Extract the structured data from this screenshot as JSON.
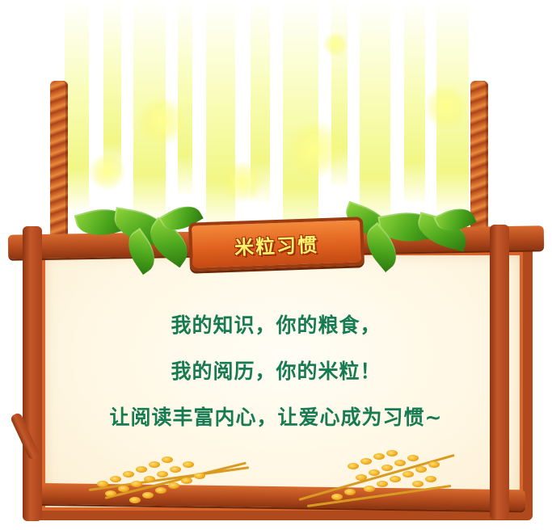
{
  "title": "米粒习惯",
  "lines": [
    "我的知识，你的粮食，",
    "我的阅历，你的米粒！",
    "让阅读丰富内心，让爱心成为习惯~"
  ],
  "colors": {
    "title_text": "#fff36a",
    "body_text": "#167b52",
    "wood": "#b04a1c"
  },
  "decorations": {
    "top": "light-rays",
    "hangers": "rope-icon",
    "foliage": "leaf-icon",
    "bottom": "wheat-icon"
  }
}
